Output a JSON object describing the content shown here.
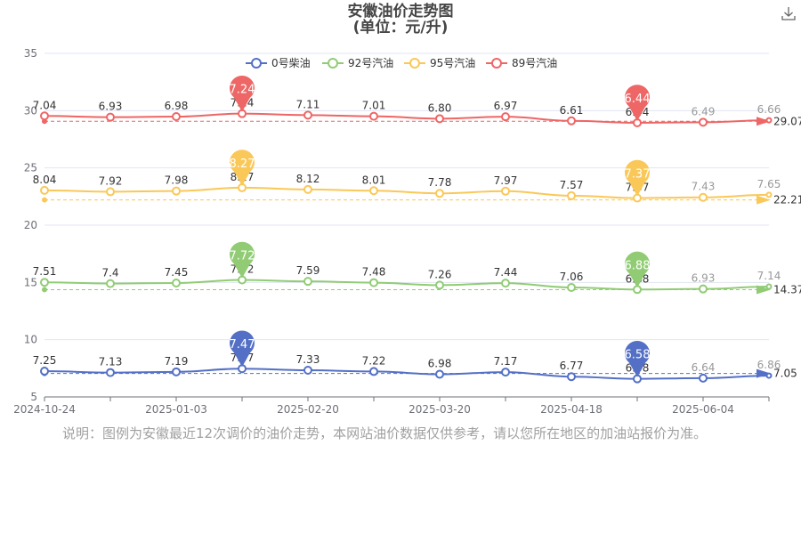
{
  "title": "安徽油价走势图",
  "subtitle": "(单位：元/升)",
  "note": "说明：图例为安徽最近12次调价的油价走势，本网站油价数据仅供参考，请以您所在地区的加油站报价为准。",
  "chart_data": {
    "type": "line",
    "x_ticks": [
      "2024-10-24",
      "2025-01-03",
      "2025-02-20",
      "2025-03-20",
      "2025-04-18",
      "2025-06-04"
    ],
    "ylim": [
      5,
      35
    ],
    "y_ticks": [
      "5",
      "10",
      "15",
      "20",
      "25",
      "30",
      "35"
    ],
    "grid": true,
    "legend_position": "top",
    "series": [
      {
        "name": "0号柴油",
        "color": "#5470c6",
        "values": [
          7.25,
          7.13,
          7.19,
          7.47,
          7.33,
          7.22,
          6.98,
          7.17,
          6.77,
          6.58,
          6.64,
          6.86
        ],
        "labels": [
          "7.25",
          "7.13",
          "7.19",
          "7.47",
          "7.33",
          "7.22",
          "6.98",
          "7.17",
          "6.77",
          "6.58",
          "6.64",
          "6.86"
        ],
        "average": 7.05,
        "average_label": "7.05",
        "max_label": "7.47",
        "min_label": "6.58"
      },
      {
        "name": "92号汽油",
        "color": "#91cc75",
        "values": [
          7.51,
          7.4,
          7.45,
          7.72,
          7.59,
          7.48,
          7.26,
          7.44,
          7.06,
          6.88,
          6.93,
          7.14
        ],
        "labels": [
          "7.51",
          "7.4",
          "7.45",
          "7.72",
          "7.59",
          "7.48",
          "7.26",
          "7.44",
          "7.06",
          "6.88",
          "6.93",
          "7.14"
        ],
        "average": 14.37,
        "average_label": "14.37",
        "max_label": "7.72",
        "min_label": "6.88"
      },
      {
        "name": "95号汽油",
        "color": "#fac858",
        "values": [
          8.04,
          7.92,
          7.98,
          8.27,
          8.12,
          8.01,
          7.78,
          7.97,
          7.57,
          7.37,
          7.43,
          7.65
        ],
        "labels": [
          "8.04",
          "7.92",
          "7.98",
          "8.27",
          "8.12",
          "8.01",
          "7.78",
          "7.97",
          "7.57",
          "7.37",
          "7.43",
          "7.65"
        ],
        "average": 22.21,
        "average_label": "22.21",
        "max_label": "8.27",
        "min_label": "7.37"
      },
      {
        "name": "89号汽油",
        "color": "#ee6666",
        "values": [
          7.04,
          6.93,
          6.98,
          7.24,
          7.11,
          7.01,
          6.8,
          6.97,
          6.61,
          6.44,
          6.49,
          6.66
        ],
        "labels": [
          "7.04",
          "6.93",
          "6.98",
          "7.24",
          "7.11",
          "7.01",
          "6.80",
          "6.97",
          "6.61",
          "6.44",
          "6.49",
          "6.66"
        ],
        "average": 29.07,
        "average_label": "29.07",
        "max_label": "7.24",
        "min_label": "6.44"
      }
    ]
  }
}
